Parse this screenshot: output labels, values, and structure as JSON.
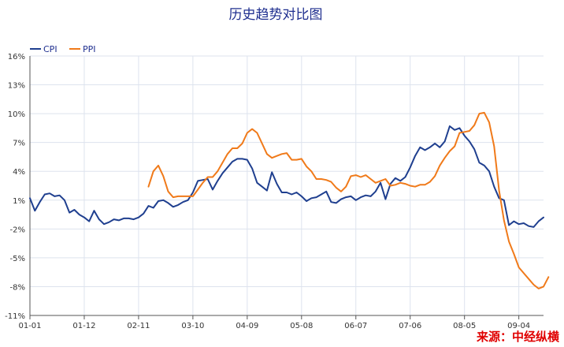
{
  "chart_data": {
    "type": "line",
    "title": "历史趋势对比图",
    "source": "来源：中经纵横",
    "ylim": [
      -11,
      16
    ],
    "y_ticks": [
      "16%",
      "13%",
      "10%",
      "7%",
      "4%",
      "1%",
      "-2%",
      "-5%",
      "-8%",
      "-11%"
    ],
    "x_ticks": [
      "01-01",
      "01-12",
      "02-11",
      "03-10",
      "04-09",
      "05-08",
      "06-07",
      "07-06",
      "08-05",
      "09-04"
    ],
    "x_tick_index": [
      0,
      11,
      22,
      33,
      44,
      55,
      66,
      77,
      88,
      99
    ],
    "grid": true,
    "legend_position": "top-left",
    "series": [
      {
        "name": "CPI",
        "color": "#1f3f8f",
        "start_index": 0,
        "values": [
          1.2,
          -0.1,
          0.8,
          1.6,
          1.7,
          1.4,
          1.5,
          1.0,
          -0.3,
          0.0,
          -0.5,
          -0.8,
          -1.2,
          -0.1,
          -1.0,
          -1.5,
          -1.3,
          -1.0,
          -1.1,
          -0.9,
          -0.9,
          -1.0,
          -0.8,
          -0.4,
          0.4,
          0.2,
          0.9,
          1.0,
          0.7,
          0.3,
          0.5,
          0.8,
          1.0,
          1.8,
          3.0,
          3.1,
          3.2,
          2.1,
          3.0,
          3.8,
          4.4,
          5.0,
          5.3,
          5.3,
          5.2,
          4.3,
          2.8,
          2.4,
          2.0,
          3.9,
          2.7,
          1.8,
          1.8,
          1.6,
          1.8,
          1.4,
          0.9,
          1.2,
          1.3,
          1.6,
          1.9,
          0.8,
          0.7,
          1.1,
          1.3,
          1.4,
          1.0,
          1.3,
          1.5,
          1.4,
          1.9,
          2.8,
          1.1,
          2.7,
          3.3,
          3.0,
          3.4,
          4.4,
          5.6,
          6.5,
          6.2,
          6.5,
          6.9,
          6.5,
          7.1,
          8.7,
          8.3,
          8.5,
          7.7,
          7.1,
          6.3,
          4.9,
          4.6,
          4.0,
          2.4,
          1.2,
          1.0,
          -1.6,
          -1.2,
          -1.5,
          -1.4,
          -1.7,
          -1.8,
          -1.2,
          -0.8
        ]
      },
      {
        "name": "PPI",
        "color": "#f07a1a",
        "start_index": 24,
        "values": [
          2.4,
          4.0,
          4.6,
          3.5,
          1.9,
          1.3,
          1.4,
          1.4,
          1.4,
          1.4,
          2.1,
          2.8,
          3.4,
          3.4,
          4.0,
          4.9,
          5.8,
          6.4,
          6.4,
          6.9,
          8.0,
          8.4,
          8.0,
          6.9,
          5.8,
          5.4,
          5.6,
          5.8,
          5.9,
          5.2,
          5.2,
          5.3,
          4.5,
          4.0,
          3.2,
          3.2,
          3.1,
          2.9,
          2.3,
          1.9,
          2.4,
          3.5,
          3.6,
          3.4,
          3.6,
          3.2,
          2.8,
          3.0,
          3.2,
          2.5,
          2.6,
          2.8,
          2.7,
          2.5,
          2.4,
          2.6,
          2.6,
          2.9,
          3.5,
          4.6,
          5.4,
          6.1,
          6.6,
          8.0,
          8.1,
          8.2,
          8.8,
          10.0,
          10.1,
          9.1,
          6.6,
          2.0,
          -1.1,
          -3.3,
          -4.6,
          -6.0,
          -6.6,
          -7.2,
          -7.8,
          -8.2,
          -8.0,
          -7.0
        ]
      }
    ]
  }
}
